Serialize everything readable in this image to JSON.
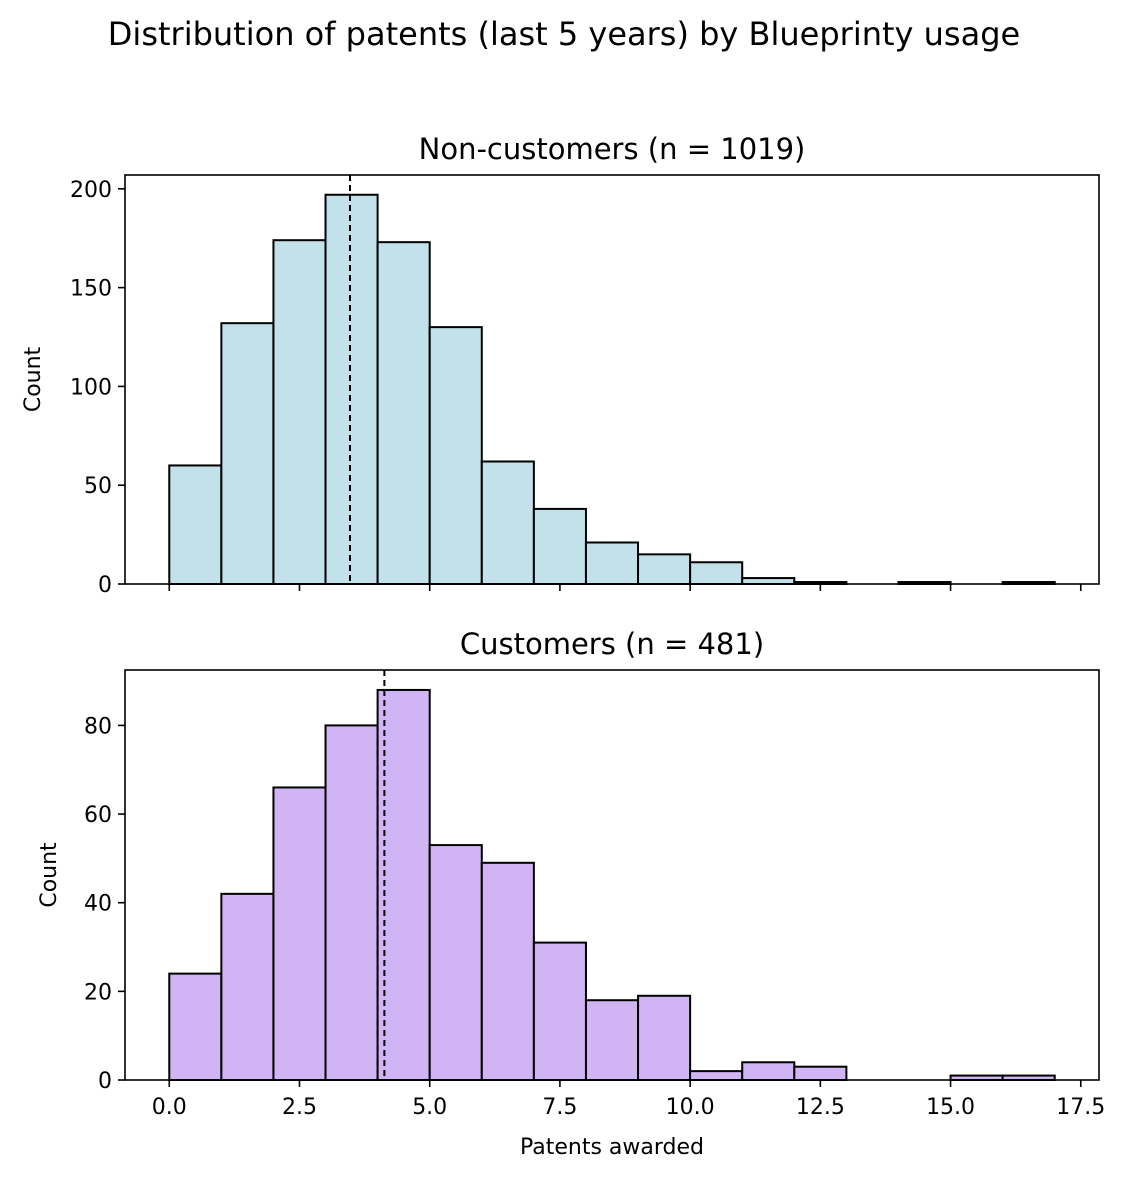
{
  "figure": {
    "title": "Distribution of patents (last 5 years) by Blueprinty usage"
  },
  "chart_data": [
    {
      "type": "bar",
      "subtype": "histogram",
      "title": "Non-customers (n = 1019)",
      "xlabel": "",
      "ylabel": "Count",
      "bin_edges": [
        0,
        1,
        2,
        3,
        4,
        5,
        6,
        7,
        8,
        9,
        10,
        11,
        12,
        13,
        14,
        15,
        16,
        17
      ],
      "values": [
        60,
        132,
        174,
        197,
        173,
        130,
        62,
        38,
        21,
        15,
        11,
        3,
        1,
        0,
        1,
        0,
        1
      ],
      "mean_line": 3.47,
      "xlim": [
        -0.85,
        17.85
      ],
      "ylim": [
        0,
        207
      ],
      "x_ticks": [
        0.0,
        2.5,
        5.0,
        7.5,
        10.0,
        12.5,
        15.0,
        17.5
      ],
      "x_ticklabels": [],
      "y_ticks": [
        0,
        50,
        100,
        150,
        200
      ],
      "y_ticklabels": [
        "0",
        "50",
        "100",
        "150",
        "200"
      ],
      "color": "#c2e1eb",
      "edgecolor": "#000000",
      "grid": false
    },
    {
      "type": "bar",
      "subtype": "histogram",
      "title": "Customers (n = 481)",
      "xlabel": "Patents awarded",
      "ylabel": "Count",
      "bin_edges": [
        0,
        1,
        2,
        3,
        4,
        5,
        6,
        7,
        8,
        9,
        10,
        11,
        12,
        13,
        14,
        15,
        16,
        17
      ],
      "values": [
        24,
        42,
        66,
        80,
        88,
        53,
        49,
        31,
        18,
        19,
        2,
        4,
        3,
        0,
        0,
        1,
        1
      ],
      "mean_line": 4.13,
      "xlim": [
        -0.85,
        17.85
      ],
      "ylim": [
        0,
        92.5
      ],
      "x_ticks": [
        0.0,
        2.5,
        5.0,
        7.5,
        10.0,
        12.5,
        15.0,
        17.5
      ],
      "x_ticklabels": [
        "0.0",
        "2.5",
        "5.0",
        "7.5",
        "10.0",
        "12.5",
        "15.0",
        "17.5"
      ],
      "y_ticks": [
        0,
        20,
        40,
        60,
        80
      ],
      "y_ticklabels": [
        "0",
        "20",
        "40",
        "60",
        "80"
      ],
      "color": "#d1b4f3",
      "edgecolor": "#000000",
      "grid": false
    }
  ]
}
